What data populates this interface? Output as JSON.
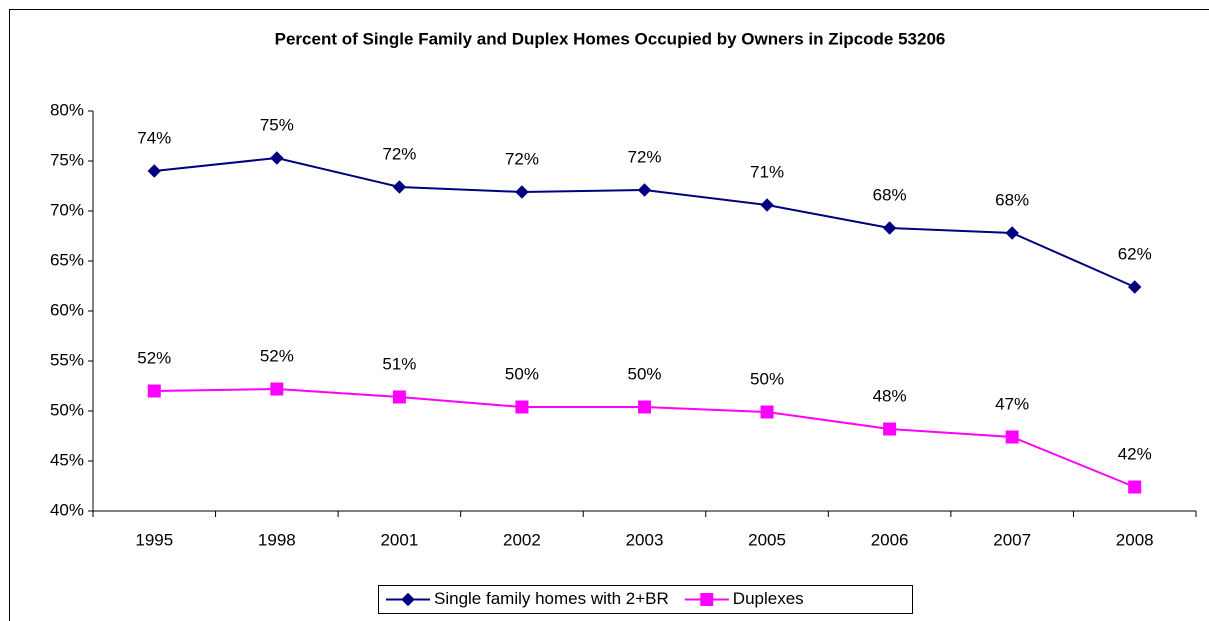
{
  "chart_data": {
    "type": "line",
    "title": "Percent of Single Family and Duplex Homes Occupied by Owners in Zipcode 53206",
    "categories": [
      "1995",
      "1998",
      "2001",
      "2002",
      "2003",
      "2005",
      "2006",
      "2007",
      "2008"
    ],
    "series": [
      {
        "name": "Single family homes with 2+BR",
        "color": "#000080",
        "marker": "diamond",
        "values": [
          74.0,
          75.3,
          72.4,
          71.9,
          72.1,
          70.6,
          68.3,
          67.8,
          62.4
        ],
        "value_labels": [
          "74%",
          "75%",
          "72%",
          "72%",
          "72%",
          "71%",
          "68%",
          "68%",
          "62%"
        ]
      },
      {
        "name": "Duplexes",
        "color": "#ff00ff",
        "marker": "square",
        "values": [
          52.0,
          52.2,
          51.4,
          50.4,
          50.4,
          49.9,
          48.2,
          47.4,
          42.4
        ],
        "value_labels": [
          "52%",
          "52%",
          "51%",
          "50%",
          "50%",
          "50%",
          "48%",
          "47%",
          "42%"
        ]
      }
    ],
    "ylim": [
      40,
      80
    ],
    "yticks": [
      {
        "value": 40,
        "label": "40%"
      },
      {
        "value": 45,
        "label": "45%"
      },
      {
        "value": 50,
        "label": "50%"
      },
      {
        "value": 55,
        "label": "55%"
      },
      {
        "value": 60,
        "label": "60%"
      },
      {
        "value": 65,
        "label": "65%"
      },
      {
        "value": 70,
        "label": "70%"
      },
      {
        "value": 75,
        "label": "75%"
      },
      {
        "value": 80,
        "label": "80%"
      }
    ],
    "grid": false,
    "legend": "bottom"
  }
}
